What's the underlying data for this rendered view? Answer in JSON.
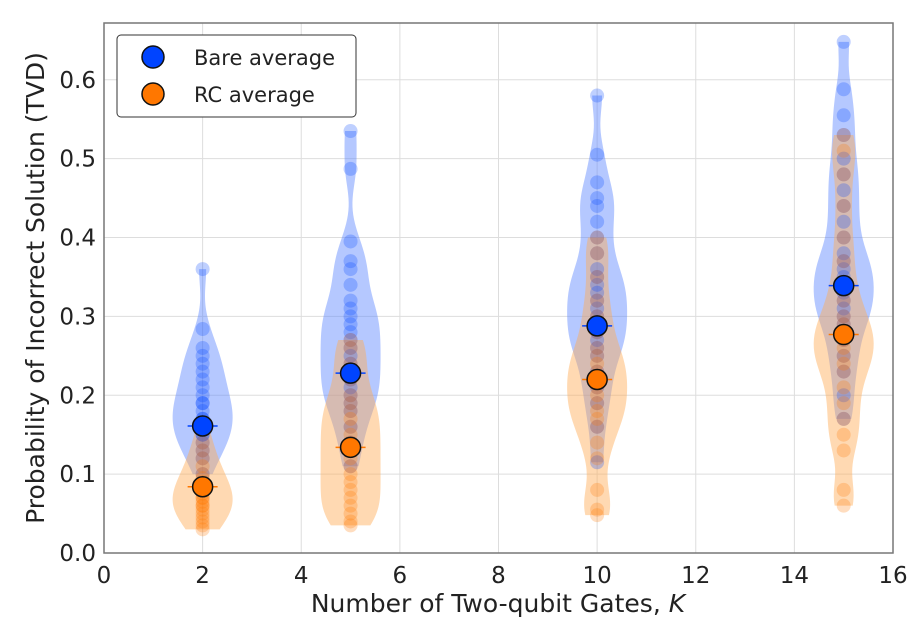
{
  "chart_data": {
    "type": "violin-scatter",
    "xlabel": "Number of Two-qubit Gates, ",
    "xlabel_italic": "K",
    "ylabel": "Probability of Incorrect Solution (TVD)",
    "xlim": [
      0,
      16
    ],
    "ylim": [
      0,
      0.672
    ],
    "xticks": [
      "0",
      "2",
      "4",
      "6",
      "8",
      "10",
      "12",
      "14",
      "16"
    ],
    "yticks": [
      "0.0",
      "0.1",
      "0.2",
      "0.3",
      "0.4",
      "0.5",
      "0.6"
    ],
    "grid": true,
    "legend_position": "top-left",
    "colors": {
      "bare": "#0044ff",
      "rc": "#ff7700"
    },
    "series": [
      {
        "name": "Bare average",
        "key": "bare",
        "x": [
          2,
          5,
          10,
          15
        ],
        "mean": [
          0.161,
          0.228,
          0.288,
          0.339
        ],
        "samples": [
          [
            0.1,
            0.12,
            0.13,
            0.14,
            0.15,
            0.15,
            0.16,
            0.17,
            0.17,
            0.18,
            0.19,
            0.19,
            0.2,
            0.21,
            0.22,
            0.23,
            0.24,
            0.25,
            0.26,
            0.284,
            0.36
          ],
          [
            0.11,
            0.14,
            0.16,
            0.18,
            0.19,
            0.2,
            0.21,
            0.22,
            0.23,
            0.24,
            0.25,
            0.26,
            0.27,
            0.28,
            0.29,
            0.3,
            0.31,
            0.32,
            0.34,
            0.36,
            0.37,
            0.395,
            0.487,
            0.535
          ],
          [
            0.115,
            0.16,
            0.19,
            0.21,
            0.23,
            0.25,
            0.26,
            0.27,
            0.28,
            0.29,
            0.3,
            0.31,
            0.32,
            0.33,
            0.34,
            0.35,
            0.36,
            0.38,
            0.4,
            0.42,
            0.44,
            0.45,
            0.47,
            0.505,
            0.58
          ],
          [
            0.17,
            0.2,
            0.23,
            0.25,
            0.27,
            0.29,
            0.3,
            0.31,
            0.32,
            0.33,
            0.34,
            0.35,
            0.36,
            0.37,
            0.38,
            0.4,
            0.42,
            0.44,
            0.46,
            0.48,
            0.5,
            0.53,
            0.555,
            0.588,
            0.648
          ]
        ]
      },
      {
        "name": "RC average",
        "key": "rc",
        "x": [
          2,
          5,
          10,
          15
        ],
        "mean": [
          0.084,
          0.134,
          0.22,
          0.277
        ],
        "samples": [
          [
            0.03,
            0.035,
            0.04,
            0.045,
            0.05,
            0.055,
            0.06,
            0.06,
            0.065,
            0.07,
            0.07,
            0.075,
            0.08,
            0.085,
            0.09,
            0.095,
            0.1,
            0.11,
            0.12,
            0.13,
            0.14,
            0.16
          ],
          [
            0.035,
            0.04,
            0.05,
            0.06,
            0.07,
            0.08,
            0.09,
            0.1,
            0.11,
            0.12,
            0.13,
            0.14,
            0.15,
            0.16,
            0.17,
            0.18,
            0.19,
            0.2,
            0.22,
            0.24,
            0.26,
            0.27
          ],
          [
            0.048,
            0.055,
            0.08,
            0.12,
            0.14,
            0.16,
            0.17,
            0.18,
            0.19,
            0.2,
            0.21,
            0.22,
            0.23,
            0.24,
            0.25,
            0.26,
            0.28,
            0.3,
            0.32,
            0.35,
            0.38,
            0.4
          ],
          [
            0.06,
            0.08,
            0.13,
            0.15,
            0.17,
            0.19,
            0.21,
            0.23,
            0.24,
            0.25,
            0.26,
            0.27,
            0.28,
            0.29,
            0.3,
            0.32,
            0.34,
            0.37,
            0.4,
            0.44,
            0.48,
            0.51,
            0.53
          ]
        ]
      }
    ]
  }
}
